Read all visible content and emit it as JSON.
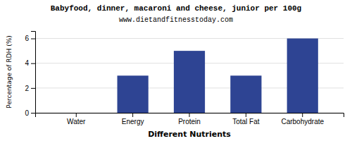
{
  "chart_data": {
    "type": "bar",
    "title": "Babyfood, dinner, macaroni and cheese, junior per 100g",
    "subtitle": "www.dietandfitnesstoday.com",
    "xlabel": "Different Nutrients",
    "ylabel": "Percentage of RDH (%)",
    "categories": [
      "Water",
      "Energy",
      "Protein",
      "Total Fat",
      "Carbohydrate"
    ],
    "values": [
      0,
      3,
      5,
      3,
      6
    ],
    "color": "#2e4493",
    "ylim": [
      0,
      6.6
    ],
    "yticks": [
      0,
      2,
      4,
      6
    ],
    "grid": true
  }
}
